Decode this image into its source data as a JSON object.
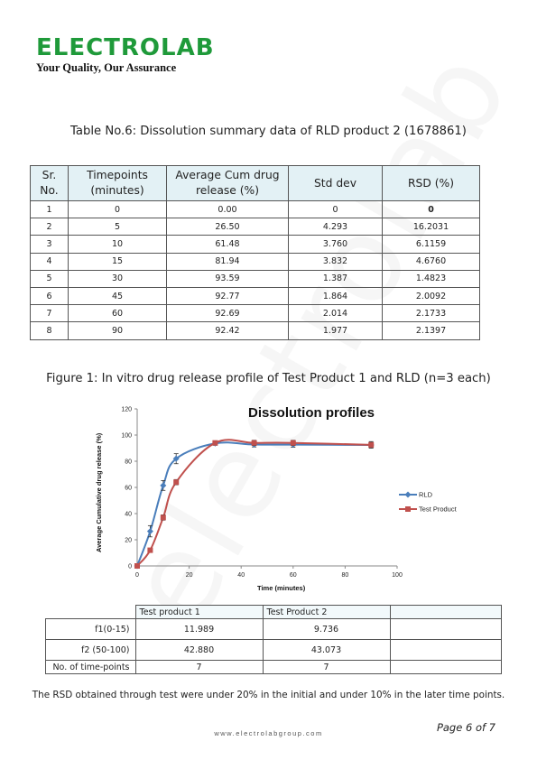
{
  "header": {
    "logo_text": "ELECTROLAB",
    "tagline": "Your Quality, Our Assurance"
  },
  "watermark": "electrolab",
  "table_caption": "Table No.6: Dissolution summary data of RLD product 2 (1678861)",
  "dissolution_table": {
    "headers": [
      "Sr. No.",
      "Timepoints (minutes)",
      "Average Cum drug release (%)",
      "Std dev",
      "RSD (%)"
    ],
    "rows": [
      [
        "1",
        "0",
        "0.00",
        "0",
        "0"
      ],
      [
        "2",
        "5",
        "26.50",
        "4.293",
        "16.2031"
      ],
      [
        "3",
        "10",
        "61.48",
        "3.760",
        "6.1159"
      ],
      [
        "4",
        "15",
        "81.94",
        "3.832",
        "4.6760"
      ],
      [
        "5",
        "30",
        "93.59",
        "1.387",
        "1.4823"
      ],
      [
        "6",
        "45",
        "92.77",
        "1.864",
        "2.0092"
      ],
      [
        "7",
        "60",
        "92.69",
        "2.014",
        "2.1733"
      ],
      [
        "8",
        "90",
        "92.42",
        "1.977",
        "2.1397"
      ]
    ]
  },
  "figure_caption": "Figure 1: In vitro drug release profile of Test Product 1 and RLD (n=3 each)",
  "chart_data": {
    "type": "line",
    "title": "Dissolution profiles",
    "xlabel": "Time (minutes)",
    "ylabel": "Average Cumulative drug release (%)",
    "xlim": [
      0,
      100
    ],
    "ylim": [
      0,
      120
    ],
    "x_ticks": [
      "0",
      "20",
      "40",
      "60",
      "80",
      "100"
    ],
    "y_ticks": [
      "0",
      "20",
      "40",
      "60",
      "80",
      "100",
      "120"
    ],
    "grid": false,
    "legend_position": "right",
    "series": [
      {
        "name": "RLD",
        "color": "#4a7ebb",
        "marker": "diamond",
        "x": [
          0,
          5,
          10,
          15,
          30,
          45,
          60,
          90
        ],
        "y": [
          0,
          26.5,
          61.48,
          81.94,
          93.59,
          92.77,
          92.69,
          92.42
        ],
        "error": [
          0,
          4.293,
          3.76,
          3.832,
          1.387,
          1.864,
          2.014,
          1.977
        ]
      },
      {
        "name": "Test Product",
        "color": "#c0504d",
        "marker": "square",
        "x": [
          0,
          5,
          10,
          15,
          30,
          45,
          60,
          90
        ],
        "y": [
          0,
          12,
          37,
          64,
          94,
          94,
          94,
          92.5
        ],
        "error": [
          0,
          1.5,
          2,
          2,
          1.5,
          2,
          2,
          2.5
        ]
      }
    ]
  },
  "f_table": {
    "columns": [
      "Test product 1",
      "Test Product 2"
    ],
    "rows": [
      {
        "label": "f1(0-15)",
        "values": [
          "11.989",
          "9.736"
        ]
      },
      {
        "label": "f2 (50-100)",
        "values": [
          "42.880",
          "43.073"
        ]
      },
      {
        "label": "No. of time-points",
        "values": [
          "7",
          "7"
        ]
      }
    ]
  },
  "note": "The RSD obtained through test were under 20% in the initial and under 10% in the later time points.",
  "footer": {
    "url": "www.electrolabgroup.com",
    "page": "Page 6 of 7"
  }
}
